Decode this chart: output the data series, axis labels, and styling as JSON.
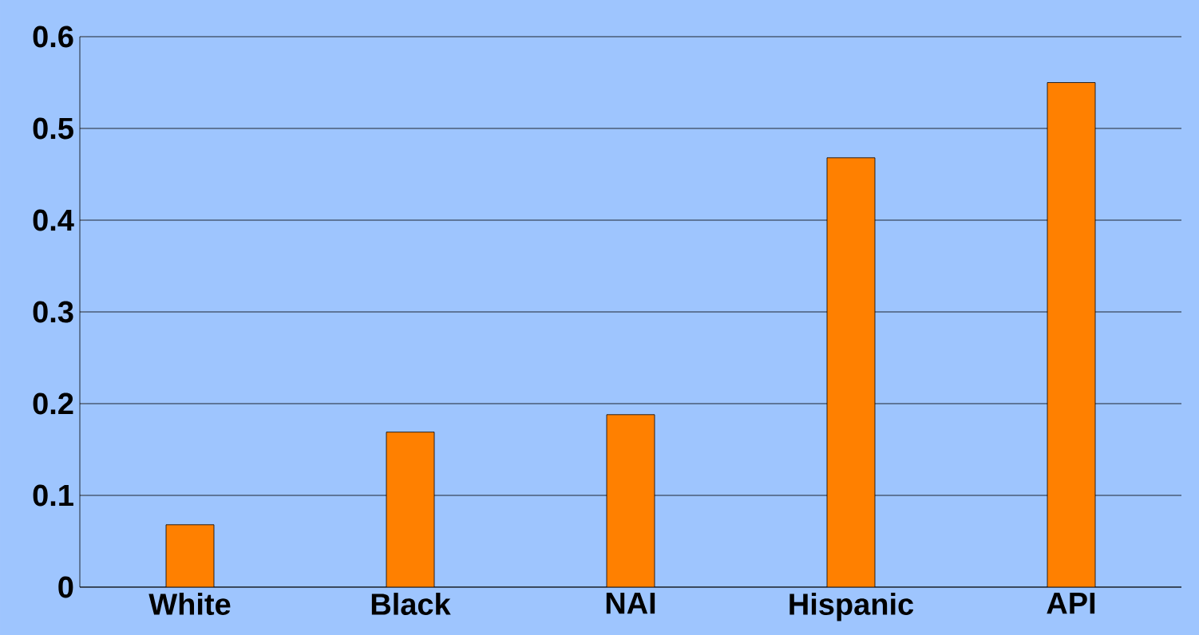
{
  "chart_data": {
    "type": "bar",
    "categories": [
      "White",
      "Black",
      "NAI",
      "Hispanic",
      "API"
    ],
    "values": [
      0.068,
      0.169,
      0.188,
      0.468,
      0.55
    ],
    "color": "#ff8000",
    "ylim": [
      0,
      0.6
    ],
    "yticks": [
      0,
      0.1,
      0.2,
      0.3,
      0.4,
      0.5,
      0.6
    ],
    "grid": "y"
  }
}
